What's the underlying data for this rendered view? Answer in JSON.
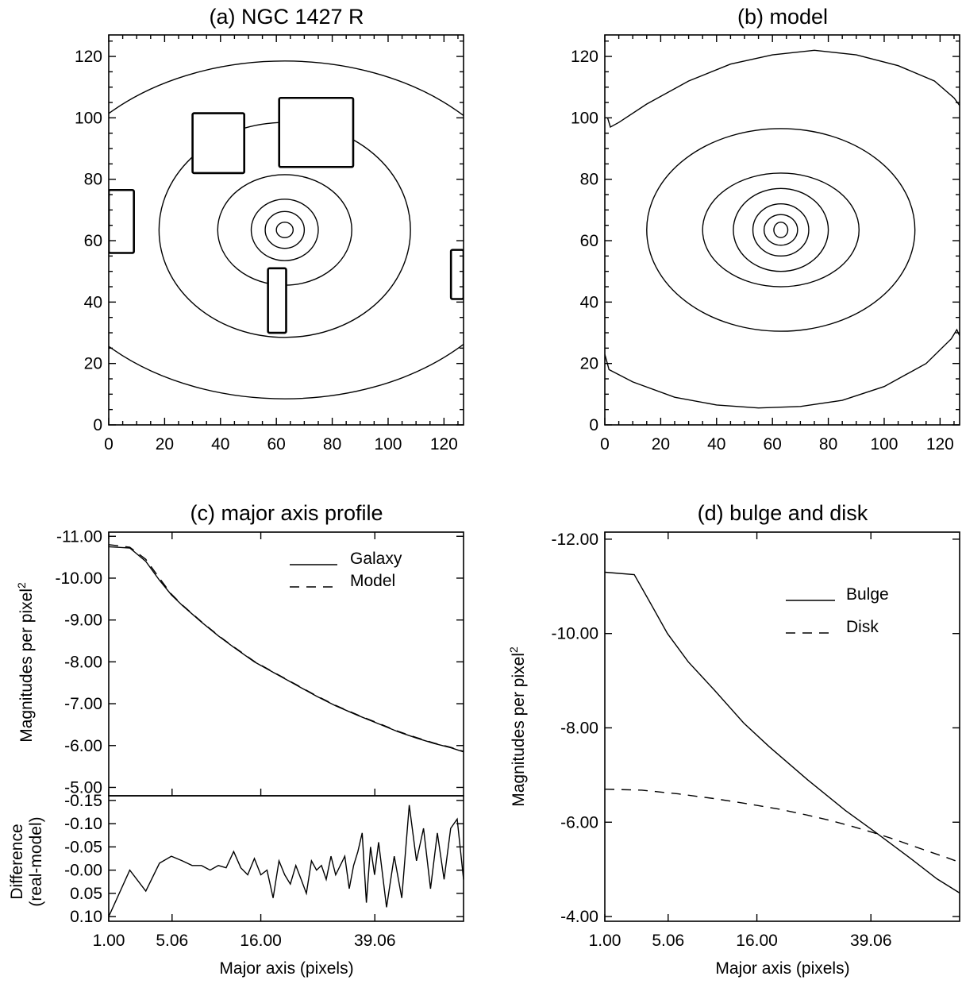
{
  "chart_data": [
    {
      "id": "a",
      "type": "contour",
      "title": "(a) NGC 1427 R",
      "xlim": [
        0,
        127
      ],
      "ylim": [
        0,
        127
      ],
      "xticks": [
        0,
        20,
        40,
        60,
        80,
        100,
        120
      ],
      "yticks": [
        0,
        20,
        40,
        60,
        80,
        100,
        120
      ],
      "center": [
        63,
        63.5
      ],
      "ellipses": [
        {
          "rx": 3,
          "ry": 2.5
        },
        {
          "rx": 7,
          "ry": 6
        },
        {
          "rx": 12,
          "ry": 10
        },
        {
          "rx": 24,
          "ry": 18
        },
        {
          "rx": 45,
          "ry": 35
        },
        {
          "rx": 87,
          "ry": 55
        }
      ],
      "masks": [
        {
          "x0": 30,
          "x1": 48.5,
          "y0": 82,
          "y1": 101.5
        },
        {
          "x0": 61,
          "x1": 87.5,
          "y0": 84,
          "y1": 106.5
        },
        {
          "x0": 0,
          "x1": 9,
          "y0": 56,
          "y1": 76.5
        },
        {
          "x0": 122.5,
          "x1": 127,
          "y0": 41,
          "y1": 57
        },
        {
          "x0": 57,
          "x1": 63.5,
          "y0": 30,
          "y1": 51
        }
      ]
    },
    {
      "id": "b",
      "type": "contour",
      "title": "(b) model",
      "xlim": [
        0,
        127
      ],
      "ylim": [
        0,
        127
      ],
      "xticks": [
        0,
        20,
        40,
        60,
        80,
        100,
        120
      ],
      "yticks": [
        0,
        20,
        40,
        60,
        80,
        100,
        120
      ],
      "center": [
        63,
        63.5
      ],
      "ellipses": [
        {
          "rx": 2.5,
          "ry": 2.5
        },
        {
          "rx": 6,
          "ry": 5
        },
        {
          "rx": 10,
          "ry": 8.5
        },
        {
          "rx": 17,
          "ry": 13.5
        },
        {
          "rx": 28,
          "ry": 18.5
        },
        {
          "rx": 48,
          "ry": 33
        }
      ],
      "outer_top": [
        [
          1,
          100
        ],
        [
          2,
          97
        ],
        [
          5,
          98.5
        ],
        [
          15,
          104.5
        ],
        [
          30,
          112
        ],
        [
          45,
          117.5
        ],
        [
          60,
          120.5
        ],
        [
          75,
          122
        ],
        [
          90,
          120.5
        ],
        [
          105,
          117
        ],
        [
          118,
          112
        ],
        [
          125,
          106.5
        ],
        [
          127,
          104
        ]
      ],
      "outer_bottom": [
        [
          0,
          23
        ],
        [
          1.5,
          18
        ],
        [
          10,
          14
        ],
        [
          25,
          9
        ],
        [
          40,
          6.5
        ],
        [
          55,
          5.5
        ],
        [
          70,
          6
        ],
        [
          85,
          8
        ],
        [
          100,
          12.5
        ],
        [
          115,
          20
        ],
        [
          124,
          28
        ],
        [
          126,
          31
        ],
        [
          127,
          29
        ]
      ]
    },
    {
      "id": "c",
      "type": "line",
      "title": "(c) major axis profile",
      "xlabel": "Major axis (pixels)",
      "ylabel": "Magnitudes per pixel",
      "ylabel_sup": "2",
      "xscale": "sqrt",
      "xlim": [
        1,
        64
      ],
      "xticks": [
        1.0,
        5.06,
        16.0,
        39.06
      ],
      "xtick_labels": [
        "1.00",
        "5.06",
        "16.00",
        "39.06"
      ],
      "ylim": [
        -4.8,
        -11.1
      ],
      "yticks": [
        -11,
        -10,
        -9,
        -8,
        -7,
        -6,
        -5
      ],
      "ytick_labels": [
        "-11.00",
        "-10.00",
        "-9.00",
        "-8.00",
        "-7.00",
        "-6.00",
        "-5.00"
      ],
      "legend": [
        {
          "label": "Galaxy",
          "dash": "solid"
        },
        {
          "label": "Model",
          "dash": "dashed"
        }
      ],
      "series": [
        {
          "name": "Galaxy",
          "dash": "solid",
          "x": [
            1,
            2,
            3,
            4,
            5,
            6,
            8,
            10,
            12,
            15,
            18,
            22,
            26,
            30,
            35,
            40,
            45,
            50,
            55,
            60,
            64
          ],
          "y": [
            -10.75,
            -10.72,
            -10.4,
            -9.95,
            -9.6,
            -9.35,
            -8.95,
            -8.62,
            -8.35,
            -8.0,
            -7.75,
            -7.45,
            -7.18,
            -6.95,
            -6.72,
            -6.52,
            -6.33,
            -6.18,
            -6.05,
            -5.95,
            -5.85
          ]
        },
        {
          "name": "Model",
          "dash": "dashed",
          "x": [
            1,
            2,
            3,
            4,
            5,
            6,
            8,
            10,
            12,
            15,
            18,
            22,
            26,
            30,
            35,
            40,
            45,
            50,
            55,
            60,
            64
          ],
          "y": [
            -10.8,
            -10.74,
            -10.45,
            -10.0,
            -9.62,
            -9.36,
            -8.96,
            -8.63,
            -8.36,
            -8.01,
            -7.76,
            -7.46,
            -7.19,
            -6.96,
            -6.73,
            -6.53,
            -6.34,
            -6.19,
            -6.06,
            -5.96,
            -5.86
          ]
        }
      ],
      "residual": {
        "ylabel": "Difference",
        "ylabel2": "(real-model)",
        "ylim": [
          0.11,
          -0.16
        ],
        "yticks": [
          0.1,
          0.05,
          0.0,
          -0.05,
          -0.1,
          -0.15
        ],
        "ytick_labels": [
          "0.10",
          "0.05",
          "-0.00",
          "-0.05",
          "-0.10",
          "-0.15"
        ],
        "x": [
          1,
          2,
          3,
          4,
          5,
          6,
          7,
          8,
          9,
          10,
          11,
          12,
          13,
          14,
          15,
          16,
          17,
          18,
          19,
          20,
          21,
          22,
          23,
          24,
          25,
          26,
          27,
          28,
          29,
          30,
          31,
          32,
          33,
          34,
          35,
          36,
          37,
          38,
          39,
          40,
          42,
          44,
          46,
          48,
          50,
          52,
          54,
          56,
          58,
          60,
          62,
          64
        ],
        "y": [
          0.1,
          0.0,
          0.045,
          -0.015,
          -0.03,
          -0.02,
          -0.01,
          -0.01,
          0.0,
          -0.01,
          -0.005,
          -0.04,
          -0.005,
          0.01,
          -0.025,
          0.01,
          0.0,
          0.06,
          -0.02,
          0.01,
          0.03,
          -0.01,
          0.02,
          0.05,
          -0.02,
          0.0,
          -0.01,
          0.02,
          -0.03,
          0.01,
          -0.01,
          -0.03,
          0.04,
          -0.01,
          -0.04,
          -0.08,
          0.07,
          -0.05,
          0.01,
          -0.06,
          0.08,
          -0.03,
          0.06,
          -0.14,
          -0.02,
          -0.09,
          0.04,
          -0.08,
          0.02,
          -0.09,
          -0.11,
          0.02
        ]
      }
    },
    {
      "id": "d",
      "type": "line",
      "title": "(d) bulge and disk",
      "xlabel": "Major axis (pixels)",
      "ylabel": "Magnitudes per pixel",
      "ylabel_sup": "2",
      "xscale": "sqrt",
      "xlim": [
        1,
        64
      ],
      "xticks": [
        1.0,
        5.06,
        16.0,
        39.06
      ],
      "xtick_labels": [
        "1.00",
        "5.06",
        "16.00",
        "39.06"
      ],
      "ylim": [
        -3.9,
        -12.15
      ],
      "yticks": [
        -12,
        -10,
        -8,
        -6,
        -4
      ],
      "ytick_labels": [
        "-12.00",
        "-10.00",
        "-8.00",
        "-6.00",
        "-4.00"
      ],
      "legend": [
        {
          "label": "Bulge",
          "dash": "solid"
        },
        {
          "label": "Disk",
          "dash": "dashed"
        }
      ],
      "series": [
        {
          "name": "Bulge",
          "dash": "solid",
          "x": [
            1,
            2.5,
            3.5,
            5,
            7,
            10,
            14,
            18,
            25,
            33,
            40,
            50,
            57,
            64
          ],
          "y": [
            -11.3,
            -11.25,
            -10.7,
            -10.0,
            -9.4,
            -8.8,
            -8.1,
            -7.6,
            -6.9,
            -6.25,
            -5.8,
            -5.2,
            -4.8,
            -4.5
          ]
        },
        {
          "name": "Disk",
          "dash": "dashed",
          "x": [
            1,
            3,
            6,
            10,
            15,
            20,
            25,
            30,
            35,
            40,
            45,
            50,
            55,
            60,
            64
          ],
          "y": [
            -6.7,
            -6.68,
            -6.6,
            -6.5,
            -6.38,
            -6.27,
            -6.15,
            -6.03,
            -5.9,
            -5.77,
            -5.64,
            -5.5,
            -5.37,
            -5.25,
            -5.15
          ]
        }
      ]
    }
  ]
}
